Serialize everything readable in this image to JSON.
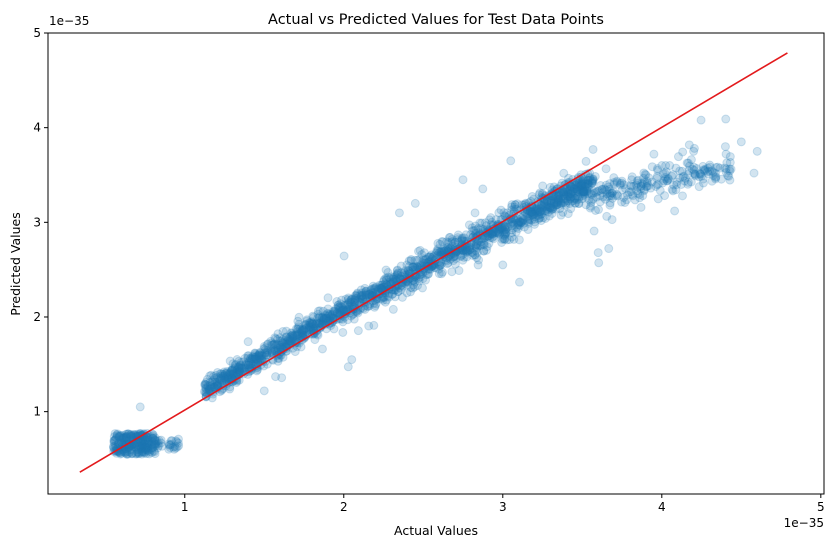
{
  "chart_data": {
    "type": "scatter",
    "title": "Actual vs Predicted Values for Test Data Points",
    "xlabel": "Actual Values",
    "ylabel": "Predicted Values",
    "x_offset_label": "1e−35",
    "y_offset_label": "1e−35",
    "xlim": [
      0.14,
      5.02
    ],
    "ylim": [
      0.13,
      5.0
    ],
    "xticks": [
      1,
      2,
      3,
      4,
      5
    ],
    "yticks": [
      1,
      2,
      3,
      4,
      5
    ],
    "grid": false,
    "legend": "none",
    "scale_note": "values in units of 1e-35",
    "series": [
      {
        "kind": "scatter",
        "color": "#1f77b4",
        "alpha": 0.2,
        "points_summary": "dense cloud of thousands of test points; representative points below",
        "clusters": [
          {
            "x_range": [
              0.55,
              0.8
            ],
            "y_range": [
              0.55,
              0.78
            ]
          },
          {
            "x_range": [
              0.8,
              1.0
            ],
            "y_range": [
              0.6,
              0.72
            ]
          },
          {
            "x_range": [
              1.1,
              3.5
            ],
            "y_trend": "y ≈ 1.05·x (slightly above identity at low x, below at high x)"
          },
          {
            "x_range": [
              3.5,
              4.6
            ],
            "y_range": [
              3.3,
              3.9
            ]
          }
        ],
        "points": [
          [
            0.6,
            0.6
          ],
          [
            0.65,
            0.62
          ],
          [
            0.7,
            0.65
          ],
          [
            0.75,
            0.7
          ],
          [
            0.8,
            0.72
          ],
          [
            0.9,
            0.66
          ],
          [
            0.95,
            0.68
          ],
          [
            0.72,
            1.05
          ],
          [
            1.15,
            1.2
          ],
          [
            1.3,
            1.35
          ],
          [
            1.5,
            1.55
          ],
          [
            1.7,
            1.75
          ],
          [
            1.9,
            1.95
          ],
          [
            2.1,
            2.15
          ],
          [
            2.3,
            2.35
          ],
          [
            2.5,
            2.5
          ],
          [
            2.7,
            2.7
          ],
          [
            2.9,
            2.85
          ],
          [
            3.1,
            3.0
          ],
          [
            3.3,
            3.15
          ],
          [
            3.5,
            3.25
          ],
          [
            3.7,
            3.4
          ],
          [
            3.9,
            3.5
          ],
          [
            4.0,
            3.6
          ],
          [
            4.2,
            3.75
          ],
          [
            4.4,
            3.8
          ],
          [
            4.5,
            3.85
          ],
          [
            4.6,
            3.75
          ],
          [
            4.58,
            3.52
          ],
          [
            2.35,
            3.1
          ],
          [
            2.45,
            3.2
          ],
          [
            2.75,
            3.45
          ],
          [
            3.05,
            3.65
          ],
          [
            1.5,
            1.22
          ],
          [
            2.05,
            1.55
          ],
          [
            3.0,
            2.55
          ],
          [
            3.6,
            2.68
          ]
        ]
      },
      {
        "kind": "line",
        "name": "",
        "color": "#e31a1c",
        "x": [
          0.34,
          4.79
        ],
        "y": [
          0.36,
          4.79
        ]
      }
    ]
  }
}
